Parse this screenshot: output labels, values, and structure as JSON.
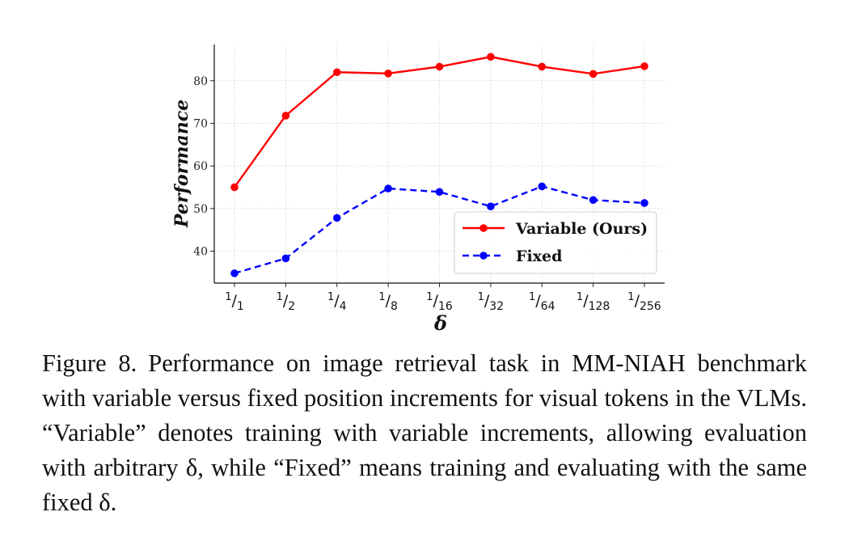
{
  "chart_data": {
    "type": "line",
    "x": [
      "1/1",
      "1/2",
      "1/4",
      "1/8",
      "1/16",
      "1/32",
      "1/64",
      "1/128",
      "1/256"
    ],
    "x_ticks": [
      {
        "num": "1",
        "den": "1"
      },
      {
        "num": "1",
        "den": "2"
      },
      {
        "num": "1",
        "den": "4"
      },
      {
        "num": "1",
        "den": "8"
      },
      {
        "num": "1",
        "den": "16"
      },
      {
        "num": "1",
        "den": "32"
      },
      {
        "num": "1",
        "den": "64"
      },
      {
        "num": "1",
        "den": "128"
      },
      {
        "num": "1",
        "den": "256"
      }
    ],
    "series": [
      {
        "name": "Variable (Ours)",
        "color": "#ff0000",
        "dash": "solid",
        "values": [
          55.0,
          71.8,
          82.0,
          81.7,
          83.3,
          85.6,
          83.3,
          81.6,
          83.4
        ]
      },
      {
        "name": "Fixed",
        "color": "#0000ff",
        "dash": "dashed",
        "values": [
          34.8,
          38.3,
          47.8,
          54.7,
          53.9,
          50.5,
          55.2,
          52.0,
          51.3
        ]
      }
    ],
    "xlabel": "δ",
    "ylabel": "Performance",
    "ylim": [
      32.5,
      88.5
    ],
    "yticks": [
      40,
      50,
      60,
      70,
      80
    ],
    "grid": true,
    "legend_position": "lower-right"
  },
  "caption": {
    "label": "Figure 8.",
    "text": "Performance on image retrieval task in MM-NIAH benchmark with variable versus fixed position increments for visual tokens in the VLMs. “Variable” denotes training with variable increments, allowing evaluation with arbitrary δ, while “Fixed” means training and evaluating with the same fixed δ."
  }
}
